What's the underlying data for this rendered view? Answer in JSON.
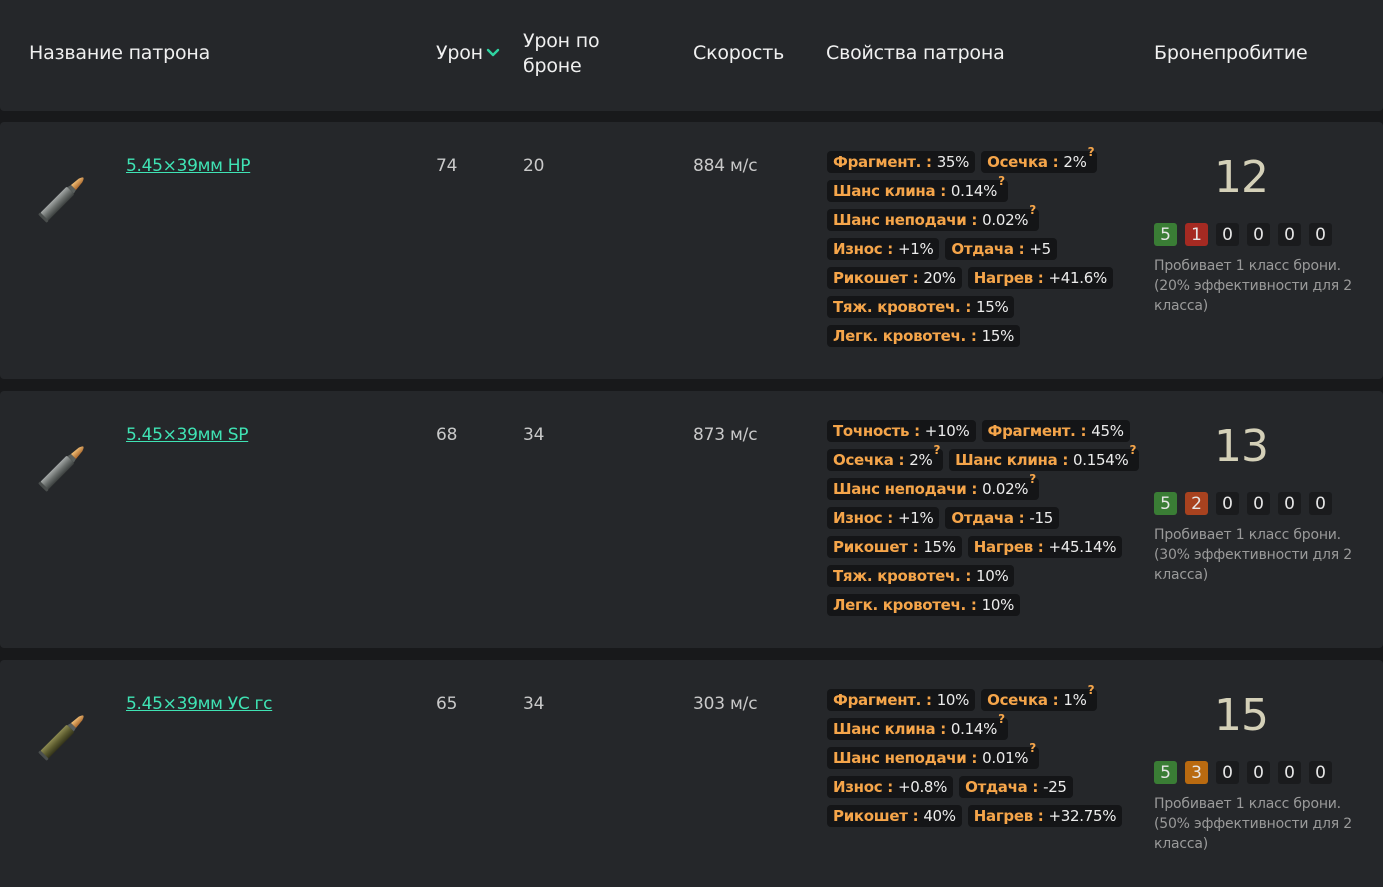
{
  "colors": {
    "accent_link": "#3fe3b4",
    "property_key": "#f5a54a",
    "class_green": "#3a7d35",
    "class_red": "#a52a22",
    "class_dark_orange": "#a8421f",
    "class_orange": "#b96a10"
  },
  "header": {
    "name": "Название патрона",
    "damage": "Урон",
    "armor_damage": "Урон по броне",
    "speed": "Скорость",
    "properties": "Свойства патрона",
    "penetration": "Бронепробитие",
    "sort_icon": "chevron-down-icon"
  },
  "rows": [
    {
      "icon": "bullet-icon",
      "name": "5.45×39мм HP",
      "damage": "74",
      "armor_damage": "20",
      "speed": "884 м/с",
      "properties": [
        [
          {
            "key": "Фрагмент. :",
            "value": "35%"
          },
          {
            "key": "Осечка :",
            "value": "2%",
            "help": "?"
          }
        ],
        [
          {
            "key": "Шанс клина :",
            "value": "0.14%",
            "help": "?"
          }
        ],
        [
          {
            "key": "Шанс неподачи :",
            "value": "0.02%",
            "help": "?"
          }
        ],
        [
          {
            "key": "Износ :",
            "value": "+1%"
          },
          {
            "key": "Отдача :",
            "value": "+5"
          }
        ],
        [
          {
            "key": "Рикошет :",
            "value": "20%"
          },
          {
            "key": "Нагрев :",
            "value": "+41.6%"
          }
        ],
        [
          {
            "key": "Тяж. кровотеч. :",
            "value": "15%"
          }
        ],
        [
          {
            "key": "Легк. кровотеч. :",
            "value": "15%"
          }
        ]
      ],
      "penetration": "12",
      "classes": [
        {
          "value": "5",
          "color": "#3a7d35"
        },
        {
          "value": "1",
          "color": "#a52a22"
        },
        {
          "value": "0",
          "color": ""
        },
        {
          "value": "0",
          "color": ""
        },
        {
          "value": "0",
          "color": ""
        },
        {
          "value": "0",
          "color": ""
        }
      ],
      "pen_text": "Пробивает 1 класс брони. (20% эффективности для 2 класса)"
    },
    {
      "icon": "bullet-icon",
      "name": "5.45×39мм SP",
      "damage": "68",
      "armor_damage": "34",
      "speed": "873 м/с",
      "properties": [
        [
          {
            "key": "Точность :",
            "value": "+10%"
          },
          {
            "key": "Фрагмент. :",
            "value": "45%"
          }
        ],
        [
          {
            "key": "Осечка :",
            "value": "2%",
            "help": "?"
          },
          {
            "key": "Шанс клина :",
            "value": "0.154%",
            "help": "?"
          }
        ],
        [
          {
            "key": "Шанс неподачи :",
            "value": "0.02%",
            "help": "?"
          }
        ],
        [
          {
            "key": "Износ :",
            "value": "+1%"
          },
          {
            "key": "Отдача :",
            "value": "-15"
          }
        ],
        [
          {
            "key": "Рикошет :",
            "value": "15%"
          },
          {
            "key": "Нагрев :",
            "value": "+45.14%"
          }
        ],
        [
          {
            "key": "Тяж. кровотеч. :",
            "value": "10%"
          }
        ],
        [
          {
            "key": "Легк. кровотеч. :",
            "value": "10%"
          }
        ]
      ],
      "penetration": "13",
      "classes": [
        {
          "value": "5",
          "color": "#3a7d35"
        },
        {
          "value": "2",
          "color": "#a8421f"
        },
        {
          "value": "0",
          "color": ""
        },
        {
          "value": "0",
          "color": ""
        },
        {
          "value": "0",
          "color": ""
        },
        {
          "value": "0",
          "color": ""
        }
      ],
      "pen_text": "Пробивает 1 класс брони. (30% эффективности для 2 класса)"
    },
    {
      "icon": "bullet-icon",
      "name": "5.45×39мм УС гс",
      "damage": "65",
      "armor_damage": "34",
      "speed": "303 м/с",
      "properties": [
        [
          {
            "key": "Фрагмент. :",
            "value": "10%"
          },
          {
            "key": "Осечка :",
            "value": "1%",
            "help": "?"
          }
        ],
        [
          {
            "key": "Шанс клина :",
            "value": "0.14%",
            "help": "?"
          }
        ],
        [
          {
            "key": "Шанс неподачи :",
            "value": "0.01%",
            "help": "?"
          }
        ],
        [
          {
            "key": "Износ :",
            "value": "+0.8%"
          },
          {
            "key": "Отдача :",
            "value": "-25"
          }
        ],
        [
          {
            "key": "Рикошет :",
            "value": "40%"
          },
          {
            "key": "Нагрев :",
            "value": "+32.75%"
          }
        ]
      ],
      "penetration": "15",
      "classes": [
        {
          "value": "5",
          "color": "#3a7d35"
        },
        {
          "value": "3",
          "color": "#b96a10"
        },
        {
          "value": "0",
          "color": ""
        },
        {
          "value": "0",
          "color": ""
        },
        {
          "value": "0",
          "color": ""
        },
        {
          "value": "0",
          "color": ""
        }
      ],
      "pen_text": "Пробивает 1 класс брони. (50% эффективности для 2 класса)"
    }
  ]
}
